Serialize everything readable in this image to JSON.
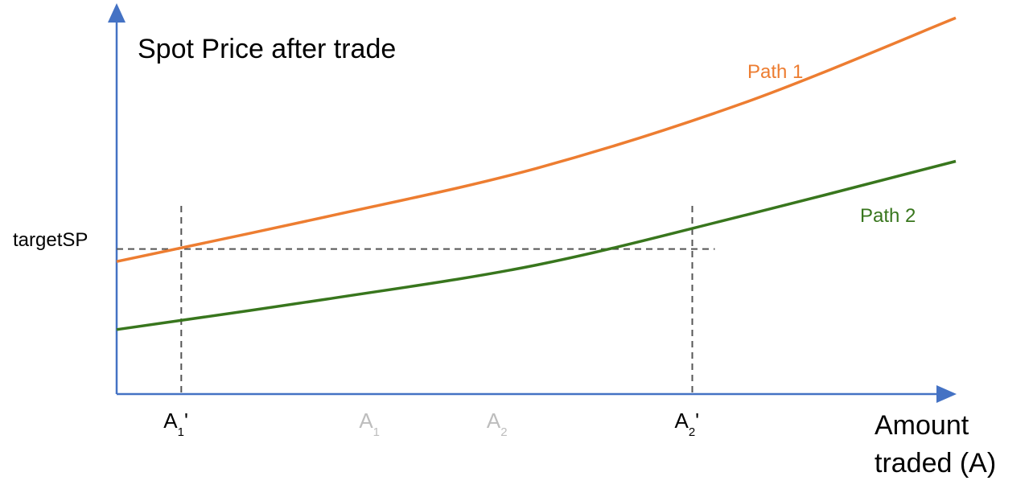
{
  "chart_data": {
    "type": "line",
    "title": "Spot Price after trade",
    "xlabel_line1": "Amount",
    "xlabel_line2": "traded (A)",
    "target_label": "targetSP",
    "series": [
      {
        "name": "Path 1",
        "color": "#ED7D31",
        "x": [
          0,
          0.25,
          0.5,
          0.75,
          1.0
        ],
        "y": [
          0.37,
          0.495,
          0.63,
          0.815,
          1.05
        ]
      },
      {
        "name": "Path 2",
        "color": "#38761D",
        "x": [
          0,
          0.25,
          0.5,
          0.75,
          1.0
        ],
        "y": [
          0.18,
          0.265,
          0.36,
          0.5,
          0.65
        ]
      }
    ],
    "target_y": 0.405,
    "xlim": [
      0,
      1
    ],
    "ylim": [
      0,
      1.1
    ],
    "x_markers": [
      {
        "base": "A",
        "sub": "1",
        "suffix": "'",
        "x": 0.077,
        "color": "#000000",
        "guide": true
      },
      {
        "base": "A",
        "sub": "1",
        "suffix": "",
        "x": 0.31,
        "color": "#bdbdbd",
        "guide": false
      },
      {
        "base": "A",
        "sub": "2",
        "suffix": "",
        "x": 0.462,
        "color": "#bdbdbd",
        "guide": false
      },
      {
        "base": "A",
        "sub": "2",
        "suffix": "'",
        "x": 0.686,
        "color": "#000000",
        "guide": true
      }
    ],
    "axis_color": "#4472C4",
    "guide_color": "#555555",
    "grid": false
  }
}
